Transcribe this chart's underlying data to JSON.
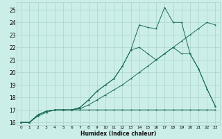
{
  "xlabel": "Humidex (Indice chaleur)",
  "background_color": "#cceee8",
  "grid_color": "#aad4cc",
  "line_color": "#1a6b5a",
  "xlim": [
    -0.5,
    23.5
  ],
  "ylim": [
    15.8,
    25.6
  ],
  "xticks": [
    0,
    1,
    2,
    3,
    4,
    5,
    6,
    7,
    8,
    9,
    10,
    11,
    12,
    13,
    14,
    15,
    16,
    17,
    18,
    19,
    20,
    21,
    22,
    23
  ],
  "yticks": [
    16,
    17,
    18,
    19,
    20,
    21,
    22,
    23,
    24,
    25
  ],
  "series": [
    {
      "x": [
        0,
        1,
        2,
        3,
        4,
        5,
        6,
        7,
        8,
        9,
        10,
        11,
        12,
        13,
        14,
        15,
        16,
        17,
        18,
        19,
        20,
        21,
        22,
        23
      ],
      "y": [
        16.0,
        16.0,
        16.5,
        16.8,
        17.0,
        17.0,
        17.0,
        17.0,
        17.0,
        17.0,
        17.0,
        17.0,
        17.0,
        17.0,
        17.0,
        17.0,
        17.0,
        17.0,
        17.0,
        17.0,
        17.0,
        17.0,
        17.0,
        17.0
      ]
    },
    {
      "x": [
        0,
        1,
        2,
        3,
        4,
        5,
        6,
        7,
        8,
        9,
        10,
        11,
        12,
        13,
        14,
        15,
        16,
        17,
        18,
        19,
        20,
        21,
        22,
        23
      ],
      "y": [
        16.0,
        16.0,
        16.6,
        16.9,
        17.0,
        17.0,
        17.0,
        17.1,
        17.4,
        17.8,
        18.2,
        18.6,
        19.0,
        19.5,
        20.0,
        20.5,
        21.0,
        21.5,
        22.0,
        22.5,
        23.0,
        23.5,
        24.0,
        23.8
      ]
    },
    {
      "x": [
        0,
        1,
        2,
        3,
        4,
        5,
        6,
        7,
        8,
        9,
        10,
        11,
        12,
        13,
        14,
        15,
        16,
        17,
        18,
        19,
        20,
        21,
        22,
        23
      ],
      "y": [
        16.0,
        16.0,
        16.6,
        16.9,
        17.0,
        17.0,
        17.0,
        17.2,
        17.8,
        18.5,
        19.0,
        19.5,
        20.5,
        21.8,
        22.0,
        21.5,
        21.0,
        21.5,
        22.0,
        21.5,
        21.5,
        20.3,
        18.7,
        17.3
      ]
    },
    {
      "x": [
        0,
        1,
        2,
        3,
        4,
        5,
        6,
        7,
        8,
        9,
        10,
        11,
        12,
        13,
        14,
        15,
        16,
        17,
        18,
        19,
        20,
        21,
        22,
        23
      ],
      "y": [
        16.0,
        16.0,
        16.6,
        16.9,
        17.0,
        17.0,
        17.0,
        17.2,
        17.8,
        18.5,
        19.0,
        19.5,
        20.5,
        21.8,
        23.8,
        23.6,
        23.5,
        25.2,
        24.0,
        24.0,
        21.5,
        20.3,
        18.7,
        17.3
      ]
    }
  ]
}
